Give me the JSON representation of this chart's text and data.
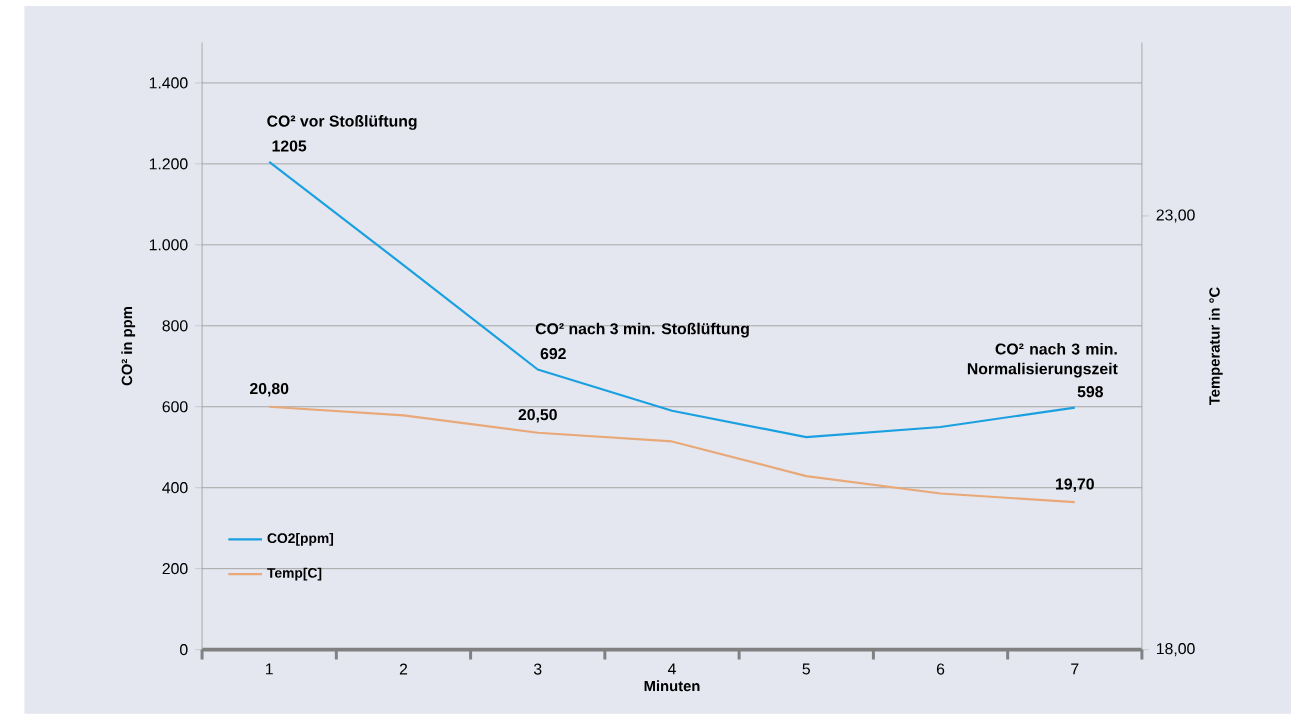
{
  "chart_data": {
    "type": "line",
    "xlabel": "Minuten",
    "ylabel": "CO² in ppm",
    "y2label": "Temperatur in °C",
    "categories": [
      "1",
      "2",
      "3",
      "4",
      "5",
      "6",
      "7"
    ],
    "series": [
      {
        "name": "CO2[ppm]",
        "color": "#1aa0e0",
        "values": [
          1205,
          950,
          692,
          590,
          525,
          550,
          598
        ],
        "value_labels": [
          "1205",
          null,
          "692",
          null,
          null,
          null,
          "598"
        ]
      },
      {
        "name": "Temp[C]",
        "color": "#e8a878",
        "axis": "y2",
        "values": [
          20.8,
          20.7,
          20.5,
          20.4,
          20.0,
          19.8,
          19.7
        ],
        "value_labels": [
          "20,80",
          null,
          "20,50",
          null,
          null,
          null,
          "19,70"
        ]
      }
    ],
    "ylim": [
      0,
      1500
    ],
    "yticks": [
      0,
      200,
      400,
      600,
      800,
      {
        "value": 1000,
        "label": "1.000"
      },
      {
        "value": 1200,
        "label": "1.200"
      },
      {
        "value": 1400,
        "label": "1.400"
      }
    ],
    "y2lim": [
      18,
      25
    ],
    "y2ticks": [
      {
        "value": 18,
        "label": "18,00"
      },
      {
        "value": 23,
        "label": "23,00"
      }
    ],
    "annotations": [
      {
        "text": "CO² vor Stoßlüftung",
        "x": "1",
        "y": 1205
      },
      {
        "text": "CO² nach 3 min. Stoßlüftung",
        "x": "3",
        "y": 692
      },
      {
        "text": "CO² nach 3 min. Normalisierungszeit",
        "x": "7",
        "y": 598
      }
    ],
    "grid": "y",
    "legend": "bottom left"
  }
}
